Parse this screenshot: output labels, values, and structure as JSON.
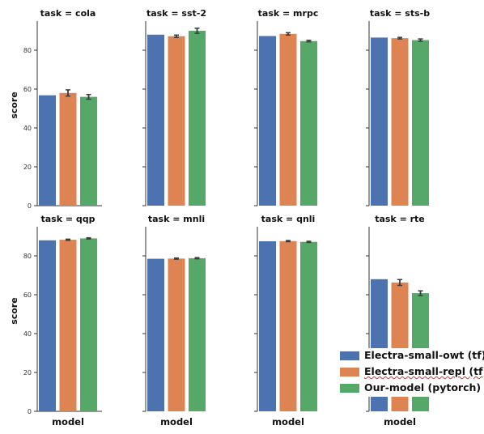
{
  "chart_data": {
    "type": "bar",
    "facet_variable": "task",
    "xlabel": "model",
    "ylabel": "score",
    "ylim": [
      0,
      95
    ],
    "yticks": [
      0,
      20,
      40,
      60,
      80
    ],
    "series": [
      {
        "name": "Electra-small-owt (tf)",
        "color": "#4c72b0"
      },
      {
        "name": "Electra-small-repl (tf)",
        "color": "#dd8452"
      },
      {
        "name": "Our-model (pytorch)",
        "color": "#55a868"
      }
    ],
    "panels": [
      {
        "title": "task = cola",
        "values": [
          56.8,
          58.0,
          56.0
        ],
        "errors": [
          0,
          1.6,
          1.2
        ]
      },
      {
        "title": "task = sst-2",
        "values": [
          88.0,
          87.2,
          90.0
        ],
        "errors": [
          0,
          0.6,
          1.3
        ]
      },
      {
        "title": "task = mrpc",
        "values": [
          87.3,
          88.4,
          84.7
        ],
        "errors": [
          0,
          0.6,
          0.4
        ]
      },
      {
        "title": "task = sts-b",
        "values": [
          86.5,
          86.2,
          85.2
        ],
        "errors": [
          0,
          0.4,
          0.6
        ]
      },
      {
        "title": "task = qqp",
        "values": [
          88.0,
          88.3,
          89.0
        ],
        "errors": [
          0,
          0.3,
          0.3
        ]
      },
      {
        "title": "task = mnli",
        "values": [
          78.5,
          78.6,
          78.8
        ],
        "errors": [
          0,
          0.3,
          0.3
        ]
      },
      {
        "title": "task = qnli",
        "values": [
          87.5,
          87.6,
          87.2
        ],
        "errors": [
          0,
          0.3,
          0.3
        ]
      },
      {
        "title": "task = rte",
        "values": [
          68.0,
          66.3,
          60.8
        ],
        "errors": [
          0,
          1.5,
          1.2
        ]
      }
    ]
  }
}
